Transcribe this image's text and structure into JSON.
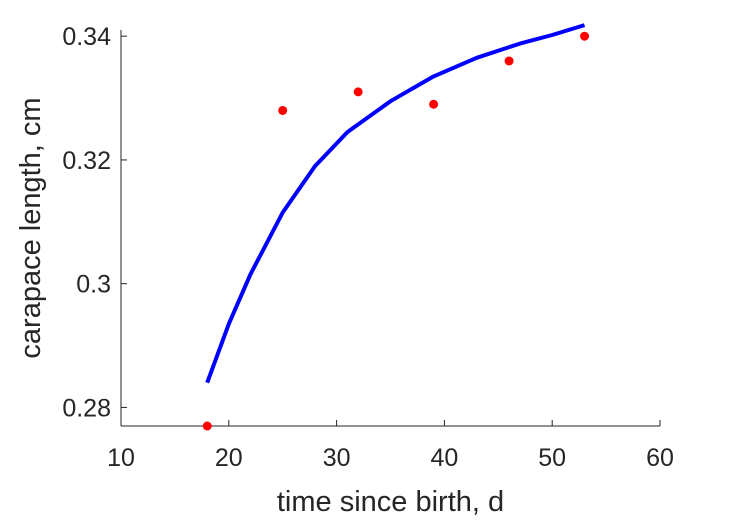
{
  "chart_data": {
    "type": "scatter",
    "title": "",
    "xlabel": "time since birth, d",
    "ylabel": "carapace length, cm",
    "xlim": [
      10,
      60
    ],
    "ylim": [
      0.277,
      0.341
    ],
    "x_ticks": [
      10,
      20,
      30,
      40,
      50,
      60
    ],
    "x_tick_labels": [
      "10",
      "20",
      "30",
      "40",
      "50",
      "60"
    ],
    "y_ticks": [
      0.28,
      0.3,
      0.32,
      0.34
    ],
    "y_tick_labels": [
      "0.28",
      "0.3",
      "0.32",
      "0.34"
    ],
    "grid": false,
    "legend": "none",
    "series": [
      {
        "kind": "points",
        "color": "#ff0000",
        "x": [
          18,
          25,
          32,
          39,
          46,
          53
        ],
        "y": [
          0.277,
          0.328,
          0.331,
          0.329,
          0.336,
          0.34
        ]
      },
      {
        "kind": "line",
        "color": "#0000ff",
        "x": [
          18,
          20,
          22,
          25,
          28,
          31,
          35,
          39,
          43,
          47,
          50,
          53
        ],
        "y": [
          0.284,
          0.2935,
          0.3015,
          0.3115,
          0.319,
          0.3245,
          0.3295,
          0.3335,
          0.3365,
          0.3388,
          0.3402,
          0.3418
        ]
      }
    ]
  }
}
